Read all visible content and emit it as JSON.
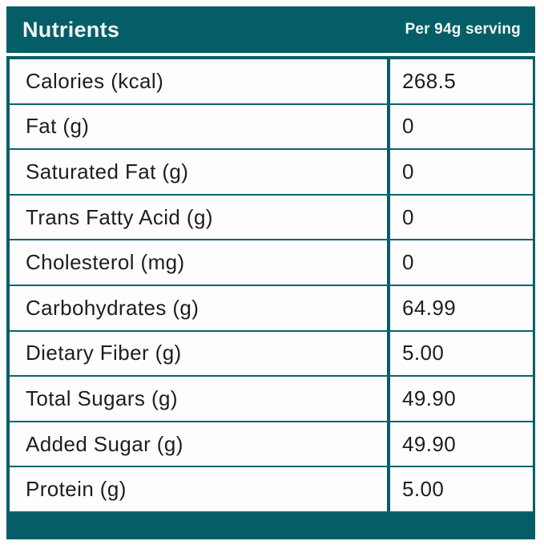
{
  "colors": {
    "accent_teal": "#055e67",
    "row_background": "#fdfdfd",
    "body_text": "#1e1e1e",
    "header_text": "#f3f6f5"
  },
  "header": {
    "title": "Nutrients",
    "serving_label": "Per 94g serving"
  },
  "table": {
    "columns": [
      "Nutrients",
      "Per 94g serving"
    ],
    "rows": [
      {
        "label": "Calories (kcal)",
        "value": "268.5"
      },
      {
        "label": "Fat (g)",
        "value": "0"
      },
      {
        "label": "Saturated Fat (g)",
        "value": "0"
      },
      {
        "label": "Trans Fatty Acid (g)",
        "value": "0"
      },
      {
        "label": "Cholesterol (mg)",
        "value": "0"
      },
      {
        "label": "Carbohydrates (g)",
        "value": "64.99"
      },
      {
        "label": "Dietary Fiber (g)",
        "value": "5.00"
      },
      {
        "label": "Total Sugars (g)",
        "value": "49.90"
      },
      {
        "label": "Added Sugar (g)",
        "value": "49.90"
      },
      {
        "label": "Protein (g)",
        "value": "5.00"
      }
    ]
  },
  "chart_data": {
    "type": "table",
    "title": "Nutrients",
    "columns": [
      "Nutrients",
      "Per 94g serving"
    ],
    "rows": [
      [
        "Calories (kcal)",
        "268.5"
      ],
      [
        "Fat (g)",
        "0"
      ],
      [
        "Saturated Fat (g)",
        "0"
      ],
      [
        "Trans Fatty Acid (g)",
        "0"
      ],
      [
        "Cholesterol (mg)",
        "0"
      ],
      [
        "Carbohydrates (g)",
        "64.99"
      ],
      [
        "Dietary Fiber (g)",
        "5.00"
      ],
      [
        "Total Sugars (g)",
        "49.90"
      ],
      [
        "Added Sugar (g)",
        "49.90"
      ],
      [
        "Protein (g)",
        "5.00"
      ]
    ]
  }
}
